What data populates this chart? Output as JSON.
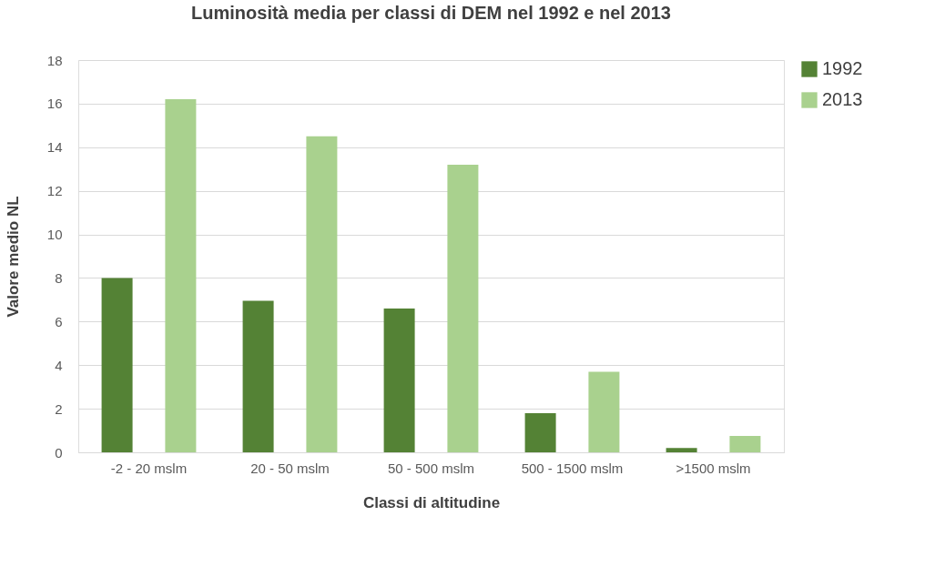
{
  "chart_data": {
    "type": "bar",
    "title": "Luminosità media per classi di DEM nel 1992 e nel 2013",
    "xlabel": "Classi di altitudine",
    "ylabel": "Valore medio NL",
    "categories": [
      "-2 - 20 mslm",
      "20 - 50 mslm",
      "50 - 500 mslm",
      "500 - 1500 mslm",
      ">1500 mslm"
    ],
    "series": [
      {
        "name": "1992",
        "color": "#548235",
        "values": [
          8.0,
          6.95,
          6.6,
          1.8,
          0.2
        ]
      },
      {
        "name": "2013",
        "color": "#a9d18e",
        "values": [
          16.2,
          14.5,
          13.2,
          3.7,
          0.75
        ]
      }
    ],
    "ylim": [
      0,
      18
    ],
    "yticks": [
      0,
      2,
      4,
      6,
      8,
      10,
      12,
      14,
      16,
      18
    ],
    "grid": "y",
    "legend": "right"
  }
}
